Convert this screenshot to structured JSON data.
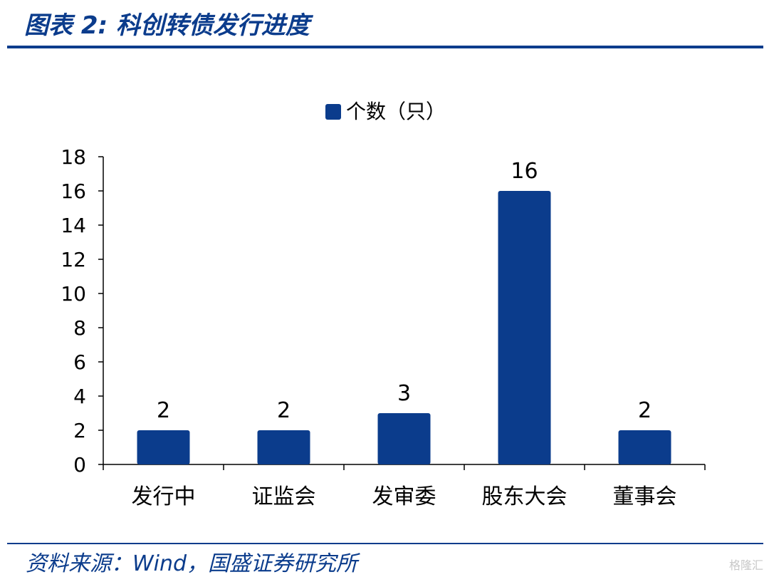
{
  "title": "图表 2:  科创转债发行进度",
  "source": "资料来源：Wind，国盛证券研究所",
  "watermark": "格隆汇",
  "colors": {
    "bar": "#0b3c8c",
    "accent": "#0b3c8c"
  },
  "chart_data": {
    "type": "bar",
    "categories": [
      "发行中",
      "证监会",
      "发审委",
      "股东大会",
      "董事会"
    ],
    "series": [
      {
        "name": "个数（只）",
        "values": [
          2,
          2,
          3,
          16,
          2
        ]
      }
    ],
    "ylim": [
      0,
      18
    ],
    "yticks": [
      0,
      2,
      4,
      6,
      8,
      10,
      12,
      14,
      16,
      18
    ],
    "legend": "top-center",
    "grid": false,
    "xlabel": "",
    "ylabel": ""
  }
}
